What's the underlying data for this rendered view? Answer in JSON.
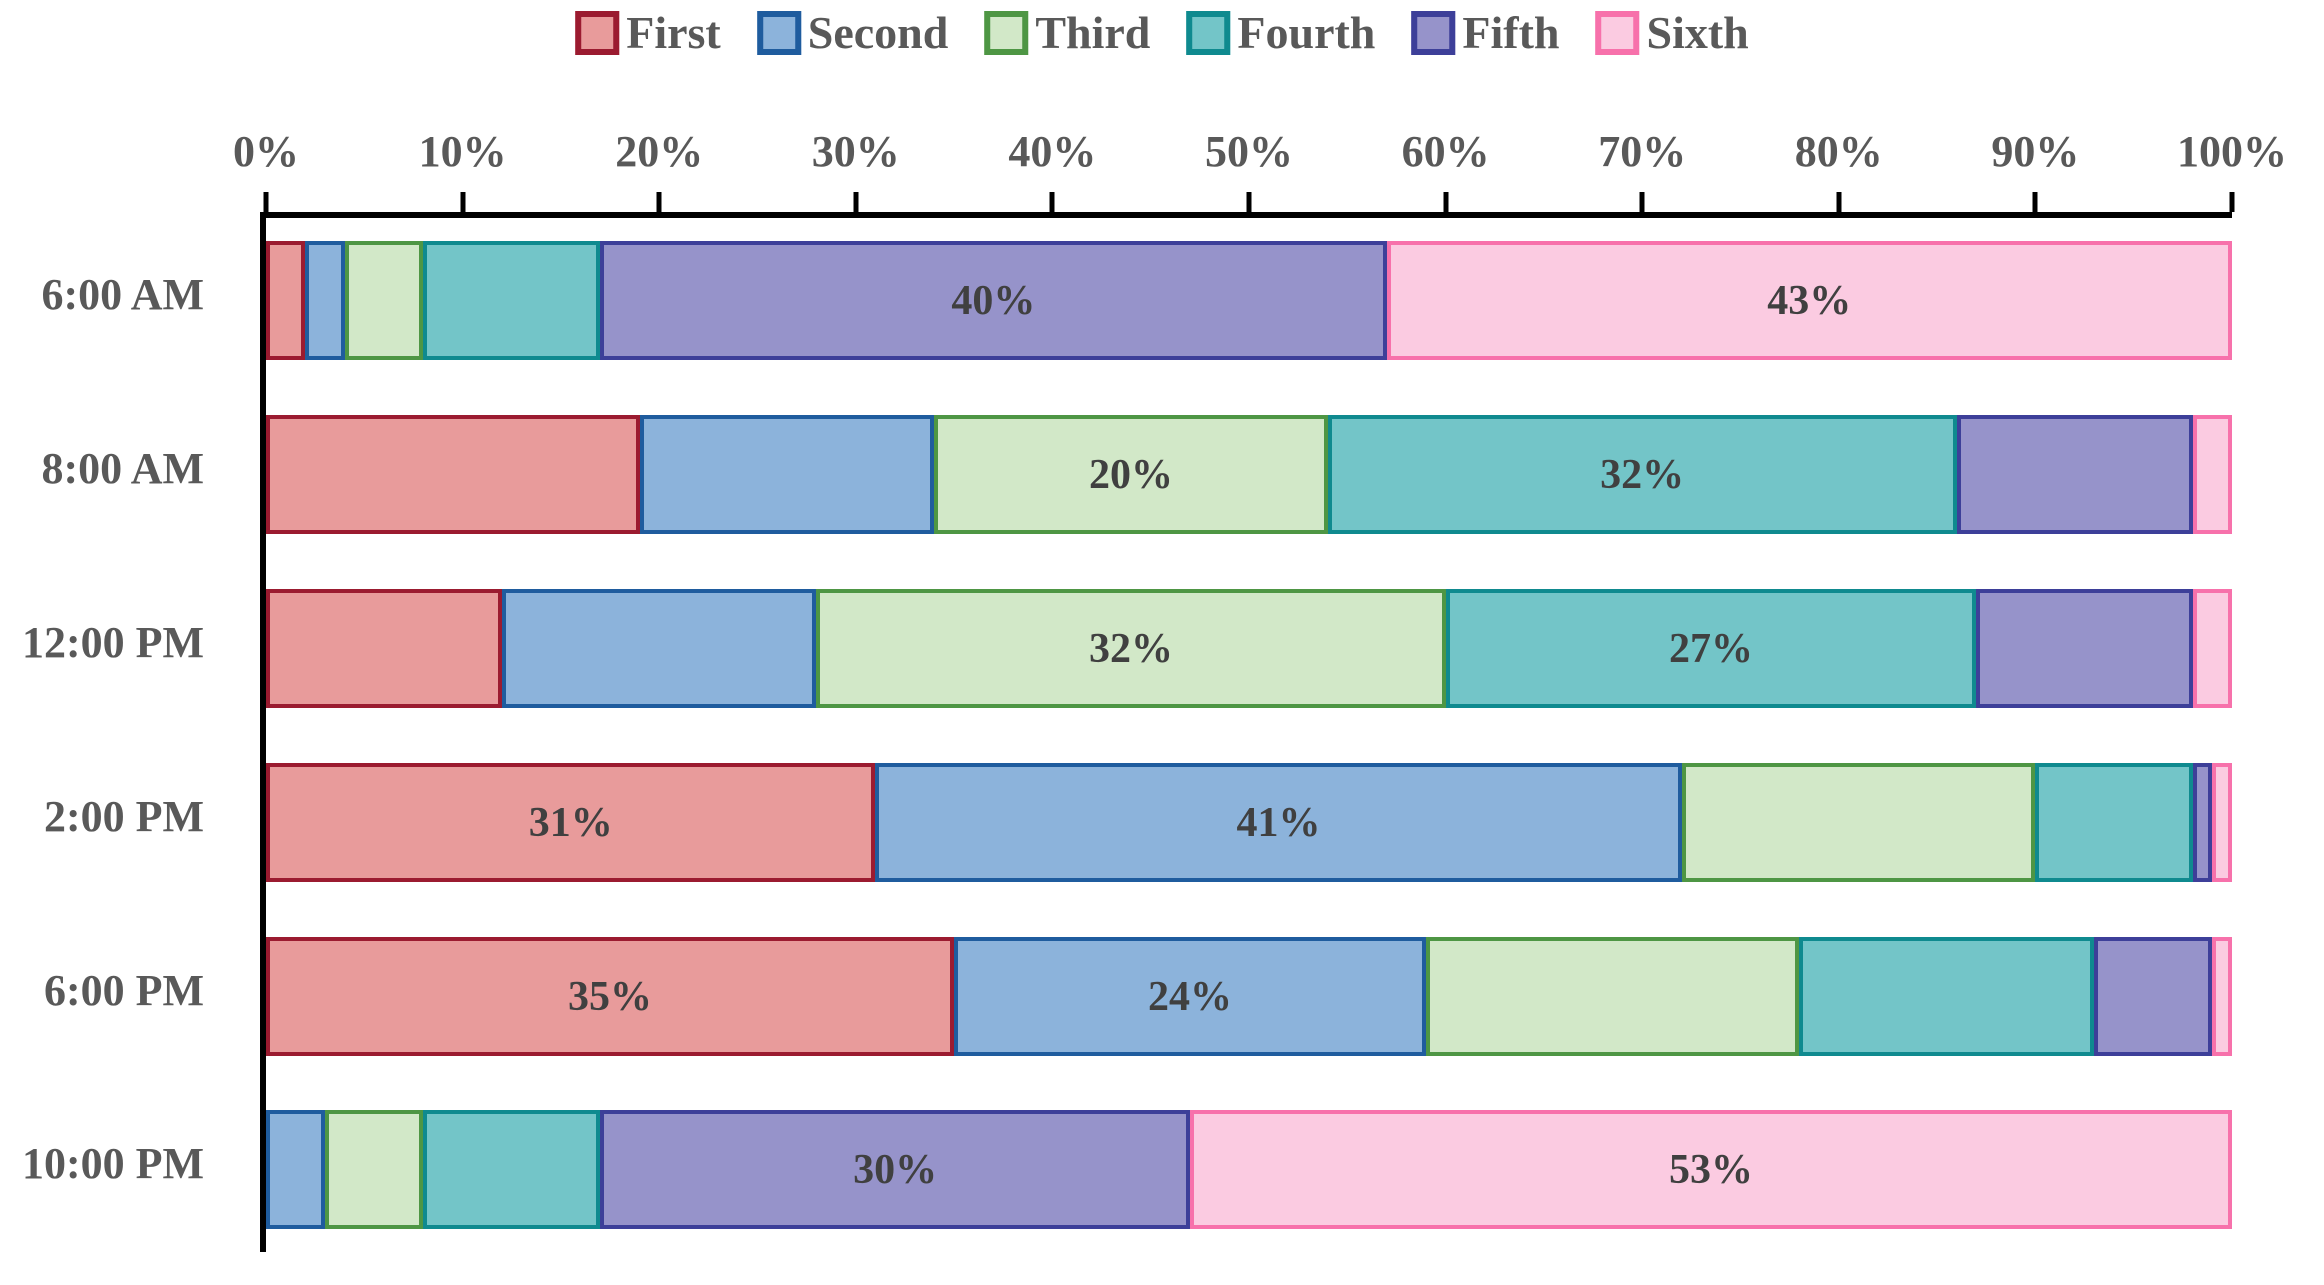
{
  "chart_data": {
    "type": "bar",
    "orientation": "horizontal",
    "stacked": true,
    "title": "",
    "xlabel": "",
    "ylabel": "",
    "xlim": [
      0,
      100
    ],
    "x_ticks": [
      "0%",
      "10%",
      "20%",
      "30%",
      "40%",
      "50%",
      "60%",
      "70%",
      "80%",
      "90%",
      "100%"
    ],
    "grid": false,
    "legend_position": "top",
    "categories": [
      "6:00 AM",
      "8:00 AM",
      "12:00 PM",
      "2:00 PM",
      "6:00 PM",
      "10:00 PM"
    ],
    "series": [
      {
        "name": "First",
        "fill": "#E89B9B",
        "border": "#9B1B30",
        "values": [
          2,
          19,
          12,
          31,
          35,
          0
        ]
      },
      {
        "name": "Second",
        "fill": "#8CB3DB",
        "border": "#1F5C9E",
        "values": [
          2,
          15,
          16,
          41,
          24,
          3
        ]
      },
      {
        "name": "Third",
        "fill": "#D2E8C8",
        "border": "#4E9644",
        "values": [
          4,
          20,
          32,
          18,
          19,
          5
        ]
      },
      {
        "name": "Fourth",
        "fill": "#73C5C8",
        "border": "#0F8A8F",
        "values": [
          9,
          32,
          27,
          8,
          15,
          9
        ]
      },
      {
        "name": "Fifth",
        "fill": "#9693CA",
        "border": "#3D3F99",
        "values": [
          40,
          12,
          11,
          1,
          6,
          30
        ]
      },
      {
        "name": "Sixth",
        "fill": "#FBCBE1",
        "border": "#F771AB",
        "values": [
          43,
          2,
          2,
          1,
          1,
          53
        ]
      }
    ],
    "data_labels": [
      [
        "",
        "",
        "",
        "",
        "40%",
        "43%"
      ],
      [
        "",
        "",
        "20%",
        "32%",
        "",
        ""
      ],
      [
        "",
        "",
        "32%",
        "27%",
        "",
        ""
      ],
      [
        "31%",
        "41%",
        "",
        "",
        "",
        ""
      ],
      [
        "35%",
        "24%",
        "",
        "",
        "",
        ""
      ],
      [
        "",
        "",
        "",
        "",
        "30%",
        "53%"
      ]
    ]
  },
  "styles": {
    "background": "#FFFFFF",
    "axis_color": "#000000",
    "axis_text_color": "#595959",
    "data_label_color": "#404040"
  }
}
